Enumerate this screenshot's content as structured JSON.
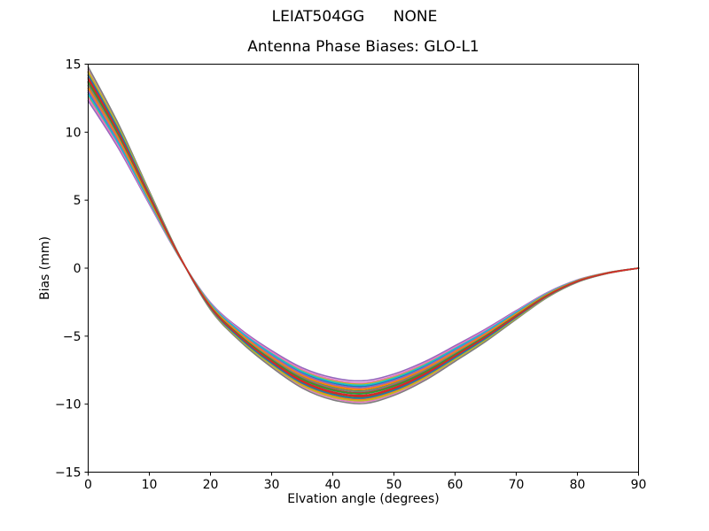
{
  "chart_data": {
    "type": "line",
    "suptitle": "LEIAT504GG      NONE",
    "title": "Antenna Phase Biases: GLO-L1",
    "xlabel": "Elvation angle (degrees)",
    "ylabel": "Bias (mm)",
    "xlim": [
      0,
      90
    ],
    "ylim": [
      -15,
      15
    ],
    "xticks": [
      0,
      10,
      20,
      30,
      40,
      50,
      60,
      70,
      80,
      90
    ],
    "yticks": [
      -15,
      -10,
      -5,
      0,
      5,
      10,
      15
    ],
    "grid": false,
    "legend": "none",
    "x": [
      0,
      5,
      10,
      15,
      20,
      25,
      30,
      35,
      40,
      45,
      50,
      55,
      60,
      65,
      70,
      75,
      80,
      85,
      90
    ],
    "center_values": [
      13.6,
      9.7,
      5.2,
      0.8,
      -2.8,
      -5.0,
      -6.7,
      -8.1,
      -8.9,
      -9.15,
      -8.6,
      -7.6,
      -6.3,
      -4.95,
      -3.45,
      -2.0,
      -0.95,
      -0.35,
      0.0
    ],
    "note": "Bundle of unlabeled per-satellite phase-bias curves; each series y = center_values x scale, all converging to 0 mm at 90 degrees",
    "series": [
      {
        "color": "#1f77b4",
        "scale": 1.01
      },
      {
        "color": "#ff7f0e",
        "scale": 0.97
      },
      {
        "color": "#2ca02c",
        "scale": 1.04
      },
      {
        "color": "#d62728",
        "scale": 1.0
      },
      {
        "color": "#9467bd",
        "scale": 0.905
      },
      {
        "color": "#8c564b",
        "scale": 1.06
      },
      {
        "color": "#e377c2",
        "scale": 1.075
      },
      {
        "color": "#7f7f7f",
        "scale": 1.088
      },
      {
        "color": "#bcbd22",
        "scale": 0.93
      },
      {
        "color": "#17becf",
        "scale": 1.025
      },
      {
        "color": "#1f77b4",
        "scale": 0.95
      },
      {
        "color": "#ff7f0e",
        "scale": 1.055
      },
      {
        "color": "#2ca02c",
        "scale": 0.985
      },
      {
        "color": "#d62728",
        "scale": 1.03
      },
      {
        "color": "#9467bd",
        "scale": 0.96
      },
      {
        "color": "#8c564b",
        "scale": 1.005
      },
      {
        "color": "#e377c2",
        "scale": 0.92
      },
      {
        "color": "#7f7f7f",
        "scale": 0.99
      },
      {
        "color": "#bcbd22",
        "scale": 1.065
      },
      {
        "color": "#17becf",
        "scale": 0.94
      },
      {
        "color": "#1f77b4",
        "scale": 1.045
      },
      {
        "color": "#ff7f0e",
        "scale": 0.975
      },
      {
        "color": "#2ca02c",
        "scale": 1.008
      },
      {
        "color": "#d62728",
        "scale": 1.022
      }
    ],
    "axis_color": "#000000",
    "background_color": "#ffffff"
  }
}
